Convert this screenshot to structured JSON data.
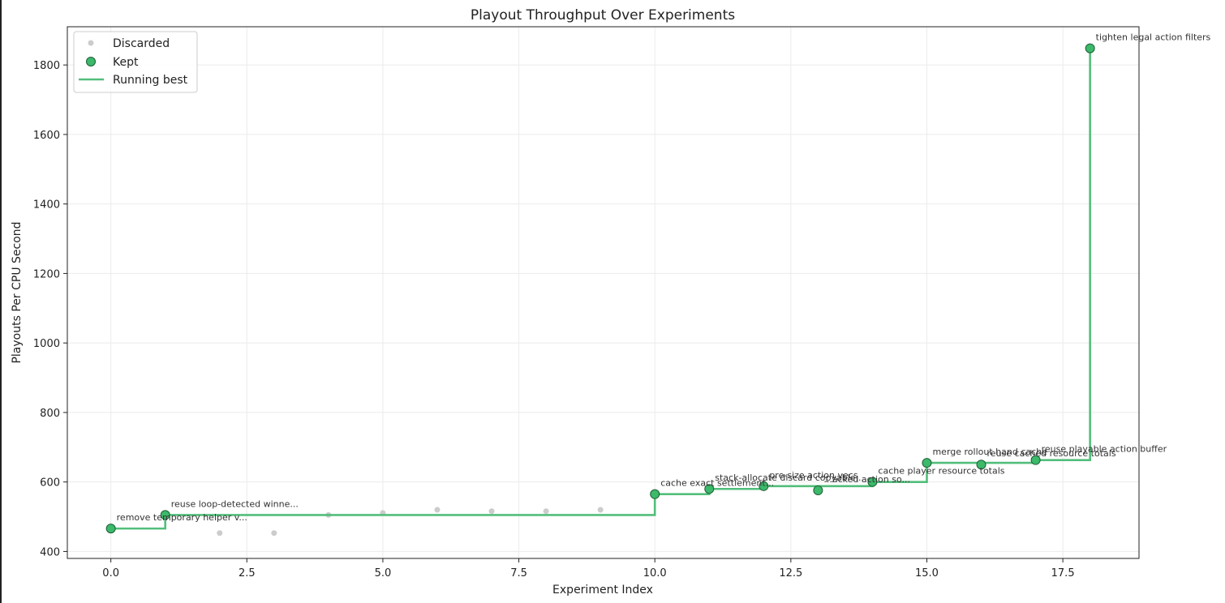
{
  "chart_data": {
    "type": "scatter",
    "title": "Playout Throughput Over Experiments",
    "xlabel": "Experiment Index",
    "ylabel": "Playouts Per CPU Second",
    "xlim": [
      -0.8,
      18.9
    ],
    "ylim": [
      380,
      1910
    ],
    "xticks": [
      0,
      2.5,
      5,
      7.5,
      10,
      12.5,
      15,
      17.5
    ],
    "xtick_labels": [
      "0.0",
      "2.5",
      "5.0",
      "7.5",
      "10.0",
      "12.5",
      "15.0",
      "17.5"
    ],
    "yticks": [
      400,
      600,
      800,
      1000,
      1200,
      1400,
      1600,
      1800
    ],
    "ytick_labels": [
      "400",
      "600",
      "800",
      "1000",
      "1200",
      "1400",
      "1600",
      "1800"
    ],
    "grid": true,
    "legend_position": "top-left",
    "series": [
      {
        "name": "Discarded",
        "kind": "scatter",
        "color": "#cccccc",
        "points": [
          {
            "x": 2,
            "y": 453
          },
          {
            "x": 3,
            "y": 453
          },
          {
            "x": 4,
            "y": 505
          },
          {
            "x": 5,
            "y": 511
          },
          {
            "x": 6,
            "y": 520
          },
          {
            "x": 7,
            "y": 516
          },
          {
            "x": 8,
            "y": 516
          },
          {
            "x": 9,
            "y": 520
          }
        ]
      },
      {
        "name": "Kept",
        "kind": "scatter",
        "color": "#3cb96a",
        "edge_color": "#1e5e36",
        "points": [
          {
            "x": 0,
            "y": 466,
            "label": "remove temporary helper v..."
          },
          {
            "x": 1,
            "y": 505,
            "label": "reuse loop-detected winne..."
          },
          {
            "x": 10,
            "y": 565,
            "label": "cache exact settlement..."
          },
          {
            "x": 11,
            "y": 580,
            "label": "stack-allocate discard copyable..."
          },
          {
            "x": 12,
            "y": 588,
            "label": "pre-size action vecs"
          },
          {
            "x": 13,
            "y": 576,
            "label": "...acked action so..."
          },
          {
            "x": 14,
            "y": 600,
            "label": "cache player resource totals"
          },
          {
            "x": 15,
            "y": 655,
            "label": "merge rollout hand cache"
          },
          {
            "x": 16,
            "y": 650,
            "label": "reuse cached resource totals"
          },
          {
            "x": 17,
            "y": 663,
            "label": "reuse playable action buffer"
          },
          {
            "x": 18,
            "y": 1848,
            "label": "tighten legal action filters"
          }
        ]
      },
      {
        "name": "Running best",
        "kind": "step",
        "color": "#52be7a",
        "points": [
          {
            "x": 0,
            "y": 466
          },
          {
            "x": 1,
            "y": 505
          },
          {
            "x": 10,
            "y": 565
          },
          {
            "x": 11,
            "y": 580
          },
          {
            "x": 12,
            "y": 588
          },
          {
            "x": 14,
            "y": 600
          },
          {
            "x": 15,
            "y": 655
          },
          {
            "x": 17,
            "y": 663
          },
          {
            "x": 18,
            "y": 1848
          }
        ]
      }
    ]
  }
}
